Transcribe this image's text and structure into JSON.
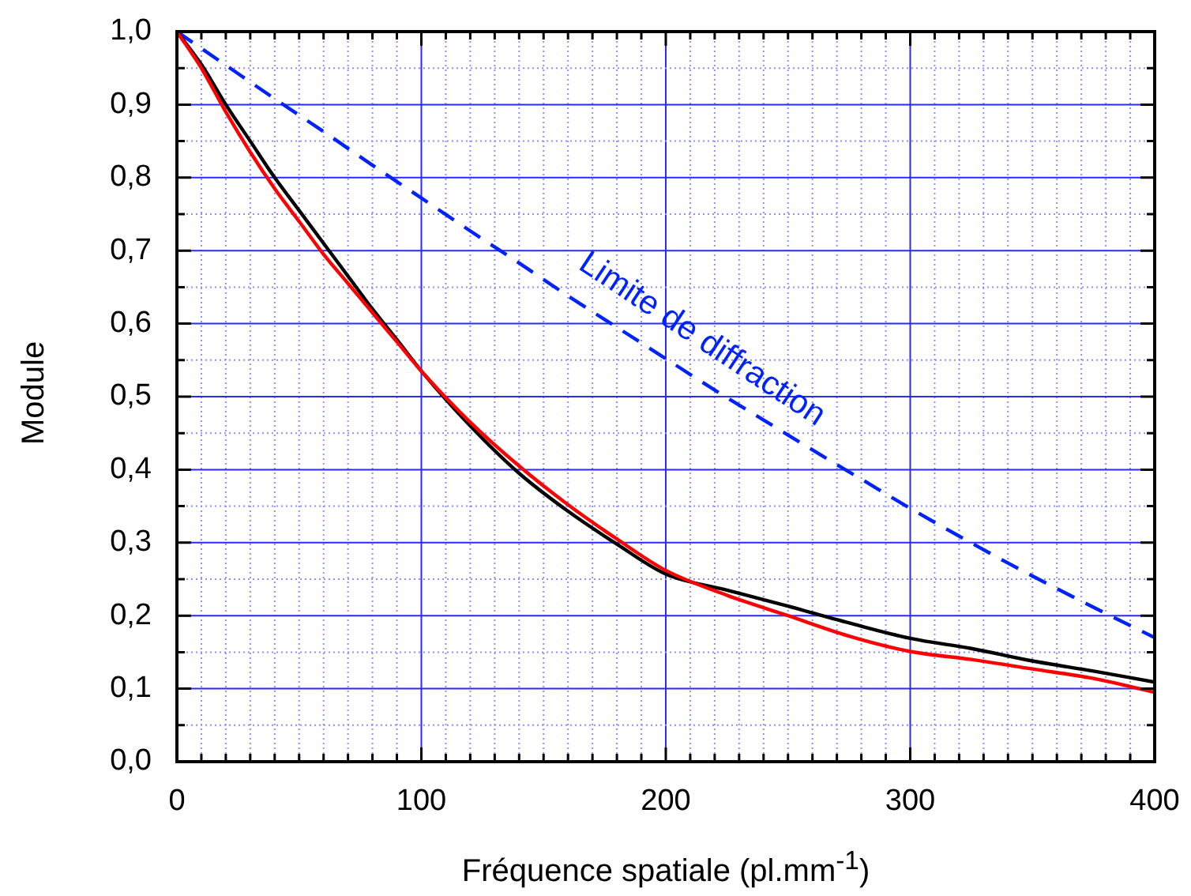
{
  "chart_data": {
    "type": "line",
    "xlabel": "Fréquence spatiale (pl.mm$^{-1}$)",
    "ylabel": "Module",
    "xlim": [
      0,
      400
    ],
    "ylim": [
      0,
      1
    ],
    "xticks": [
      0,
      {
        "value": 10,
        "label": null
      },
      {
        "value": 20,
        "label": null
      },
      {
        "value": 30,
        "label": null
      },
      {
        "value": 40,
        "label": null
      },
      {
        "value": 50,
        "label": null
      },
      {
        "value": 60,
        "label": null
      },
      {
        "value": 70,
        "label": null
      },
      {
        "value": 80,
        "label": null
      },
      {
        "value": 90,
        "label": null
      },
      100,
      {
        "value": 110,
        "label": null
      },
      {
        "value": 120,
        "label": null
      },
      {
        "value": 130,
        "label": null
      },
      {
        "value": 140,
        "label": null
      },
      {
        "value": 150,
        "label": null
      },
      {
        "value": 160,
        "label": null
      },
      {
        "value": 170,
        "label": null
      },
      {
        "value": 180,
        "label": null
      },
      {
        "value": 190,
        "label": null
      },
      200,
      {
        "value": 210,
        "label": null
      },
      {
        "value": 220,
        "label": null
      },
      {
        "value": 230,
        "label": null
      },
      {
        "value": 240,
        "label": null
      },
      {
        "value": 250,
        "label": null
      },
      {
        "value": 260,
        "label": null
      },
      {
        "value": 270,
        "label": null
      },
      {
        "value": 280,
        "label": null
      },
      {
        "value": 290,
        "label": null
      },
      300,
      {
        "value": 310,
        "label": null
      },
      {
        "value": 320,
        "label": null
      },
      {
        "value": 330,
        "label": null
      },
      {
        "value": 340,
        "label": null
      },
      {
        "value": 350,
        "label": null
      },
      {
        "value": 360,
        "label": null
      },
      {
        "value": 370,
        "label": null
      },
      {
        "value": 380,
        "label": null
      },
      {
        "value": 390,
        "label": null
      },
      400
    ],
    "yticks": [
      {
        "value": 0,
        "label": "0,0"
      },
      {
        "value": 0.05,
        "label": null
      },
      {
        "value": 0.1,
        "label": "0,1"
      },
      {
        "value": 0.15,
        "label": null
      },
      {
        "value": 0.2,
        "label": "0,2"
      },
      {
        "value": 0.25,
        "label": null
      },
      {
        "value": 0.3,
        "label": "0,3"
      },
      {
        "value": 0.35,
        "label": null
      },
      {
        "value": 0.4,
        "label": "0,4"
      },
      {
        "value": 0.45,
        "label": null
      },
      {
        "value": 0.5,
        "label": "0,5"
      },
      {
        "value": 0.55,
        "label": null
      },
      {
        "value": 0.6,
        "label": "0,6"
      },
      {
        "value": 0.65,
        "label": null
      },
      {
        "value": 0.7,
        "label": "0,7"
      },
      {
        "value": 0.75,
        "label": null
      },
      {
        "value": 0.8,
        "label": "0,8"
      },
      {
        "value": 0.85,
        "label": null
      },
      {
        "value": 0.9,
        "label": "0,9"
      },
      {
        "value": 0.95,
        "label": null
      },
      {
        "value": 1,
        "label": "1,0"
      }
    ],
    "grid": true,
    "legend": false,
    "marker": "none",
    "series": [
      {
        "color": "#ff0000",
        "line_style": "solid",
        "x": [
          0,
          10,
          20,
          30,
          40,
          50,
          60,
          70,
          80,
          90,
          100,
          120,
          140,
          160,
          180,
          200,
          225,
          250,
          275,
          300,
          325,
          350,
          375,
          400
        ],
        "values": [
          1.0,
          0.95,
          0.89,
          0.835,
          0.785,
          0.74,
          0.695,
          0.655,
          0.615,
          0.575,
          0.535,
          0.465,
          0.405,
          0.352,
          0.305,
          0.262,
          0.228,
          0.2,
          0.172,
          0.151,
          0.14,
          0.127,
          0.114,
          0.095
        ]
      },
      {
        "color": "#000000",
        "line_style": "solid",
        "x": [
          0,
          10,
          20,
          30,
          40,
          50,
          60,
          70,
          80,
          90,
          100,
          120,
          140,
          160,
          180,
          200,
          225,
          250,
          275,
          300,
          325,
          350,
          375,
          400
        ],
        "values": [
          1.0,
          0.955,
          0.9,
          0.85,
          0.8,
          0.755,
          0.71,
          0.665,
          0.62,
          0.578,
          0.535,
          0.46,
          0.395,
          0.343,
          0.298,
          0.257,
          0.235,
          0.213,
          0.19,
          0.169,
          0.155,
          0.138,
          0.124,
          0.109
        ]
      },
      {
        "color": "#0022ff",
        "line_style": "dashed",
        "x": [
          0,
          20,
          40,
          60,
          80,
          100,
          120,
          140,
          160,
          180,
          200,
          220,
          240,
          260,
          280,
          300,
          320,
          340,
          360,
          380,
          400
        ],
        "values": [
          1.0,
          0.954,
          0.908,
          0.863,
          0.817,
          0.772,
          0.727,
          0.683,
          0.638,
          0.595,
          0.552,
          0.509,
          0.468,
          0.427,
          0.387,
          0.347,
          0.309,
          0.272,
          0.237,
          0.203,
          0.17
        ]
      }
    ],
    "annotations": [
      "Limite de diffraction"
    ]
  }
}
